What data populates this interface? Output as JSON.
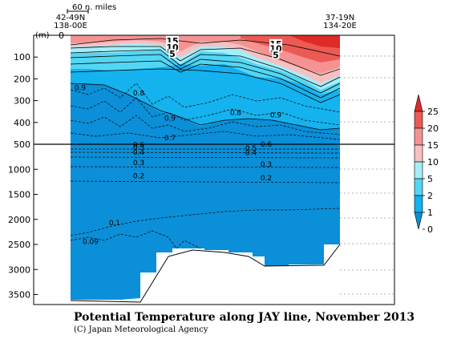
{
  "chart_data": {
    "type": "contour section",
    "title": "Potential Temperature along JAY line, November 2013",
    "credit": "(C) Japan Meteorological Agency",
    "y_unit": "(m)",
    "scale_label": "60 n. miles",
    "left_station": {
      "lat": "42-49N",
      "lon": "138-00E"
    },
    "right_station": {
      "lat": "37-19N",
      "lon": "134-20E"
    },
    "upper_depth_ticks": [
      0,
      100,
      200,
      300,
      400,
      500
    ],
    "lower_depth_ticks": [
      1000,
      1500,
      2000,
      2500,
      3000,
      3500
    ],
    "depth_break": 500,
    "colorbar": {
      "levels": [
        0,
        1,
        2,
        5,
        10,
        15,
        20,
        25
      ],
      "colors": [
        "#0a8fd8",
        "#14b2ee",
        "#52d6f4",
        "#a5eef9",
        "#f7c0c0",
        "#f59393",
        "#ec5a55",
        "#de2b27"
      ]
    },
    "contour_labels": [
      {
        "text": "15",
        "x_km": 127,
        "depth": 25
      },
      {
        "text": "10",
        "x_km": 127,
        "depth": 55
      },
      {
        "text": "5",
        "x_km": 127,
        "depth": 85
      },
      {
        "text": "15",
        "x_km": 256,
        "depth": 40
      },
      {
        "text": "10",
        "x_km": 256,
        "depth": 60
      },
      {
        "text": "5",
        "x_km": 256,
        "depth": 90
      },
      {
        "text": "0.9",
        "x_km": 12,
        "depth": 240
      },
      {
        "text": "0.8",
        "x_km": 85,
        "depth": 265
      },
      {
        "text": "0.9",
        "x_km": 124,
        "depth": 380
      },
      {
        "text": "0.8",
        "x_km": 206,
        "depth": 355
      },
      {
        "text": "0.9",
        "x_km": 256,
        "depth": 365
      },
      {
        "text": "0.7",
        "x_km": 124,
        "depth": 470
      },
      {
        "text": "0.6",
        "x_km": 85,
        "depth": 510
      },
      {
        "text": "0.5",
        "x_km": 85,
        "depth": 560
      },
      {
        "text": "0.4",
        "x_km": 85,
        "depth": 660
      },
      {
        "text": "0.3",
        "x_km": 85,
        "depth": 870
      },
      {
        "text": "0.2",
        "x_km": 85,
        "depth": 1130
      },
      {
        "text": "0.6",
        "x_km": 244,
        "depth": 500
      },
      {
        "text": "0.5",
        "x_km": 225,
        "depth": 580
      },
      {
        "text": "0.4",
        "x_km": 225,
        "depth": 670
      },
      {
        "text": "0.3",
        "x_km": 244,
        "depth": 900
      },
      {
        "text": "0.2",
        "x_km": 244,
        "depth": 1170
      },
      {
        "text": "0.1",
        "x_km": 55,
        "depth": 2070
      },
      {
        "text": "0.09",
        "x_km": 25,
        "depth": 2440
      }
    ]
  }
}
